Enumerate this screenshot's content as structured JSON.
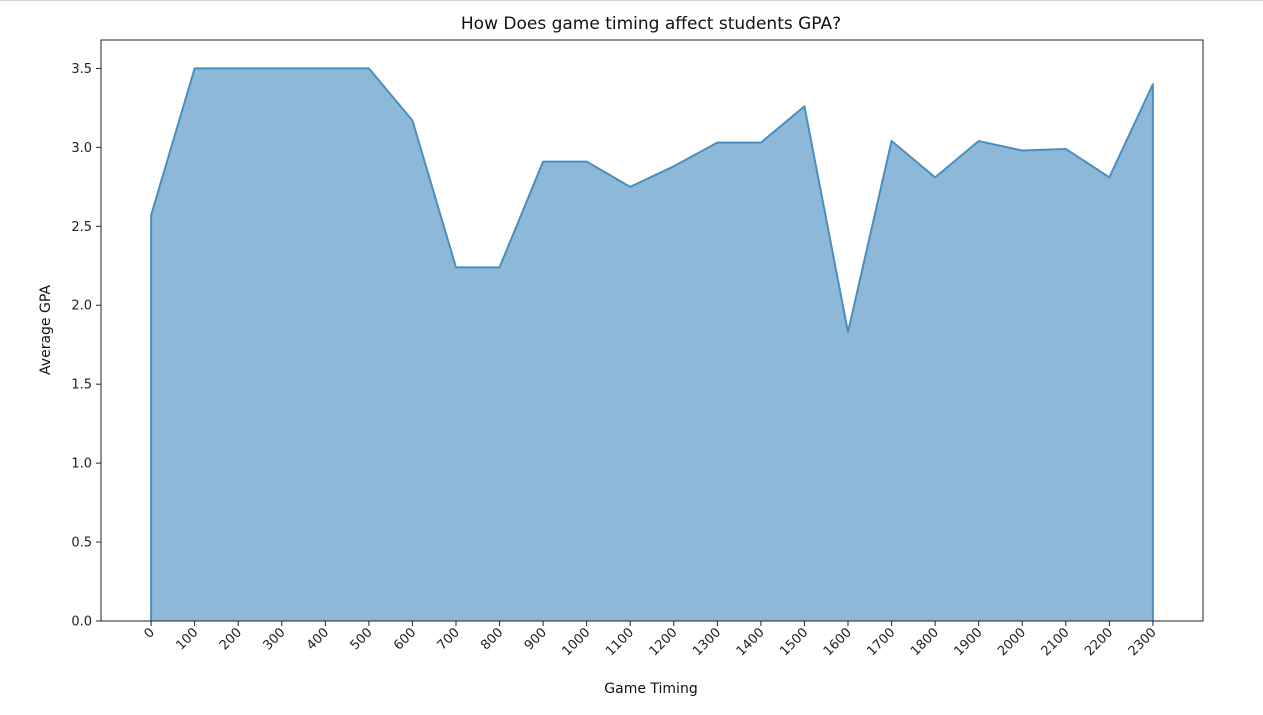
{
  "chart_data": {
    "type": "area",
    "title": "How Does game timing affect students GPA?",
    "xlabel": "Game Timing",
    "ylabel": "Average GPA",
    "x": [
      0,
      100,
      200,
      300,
      400,
      500,
      600,
      700,
      800,
      900,
      1000,
      1100,
      1200,
      1300,
      1400,
      1500,
      1600,
      1700,
      1800,
      1900,
      2000,
      2100,
      2200,
      2300
    ],
    "x_tick_labels": [
      "0",
      "100",
      "200",
      "300",
      "400",
      "500",
      "600",
      "700",
      "800",
      "900",
      "1000",
      "1100",
      "1200",
      "1300",
      "1400",
      "1500",
      "1600",
      "1700",
      "1800",
      "1900",
      "2000",
      "2100",
      "2200",
      "2300"
    ],
    "y": [
      2.57,
      3.5,
      3.5,
      3.5,
      3.5,
      3.5,
      3.17,
      2.24,
      2.24,
      2.91,
      2.91,
      2.75,
      2.88,
      3.03,
      3.03,
      3.26,
      1.83,
      3.04,
      2.81,
      3.04,
      2.98,
      2.99,
      2.81,
      3.4
    ],
    "y_ticks": [
      0.0,
      0.5,
      1.0,
      1.5,
      2.0,
      2.5,
      3.0,
      3.5
    ],
    "y_tick_labels": [
      "0.0",
      "0.5",
      "1.0",
      "1.5",
      "2.0",
      "2.5",
      "3.0",
      "3.5"
    ],
    "xlim": [
      -115,
      2415
    ],
    "ylim": [
      0,
      3.68
    ],
    "x_tick_rotation_deg": -45,
    "grid": false,
    "legend": "none",
    "colors": {
      "fill": "#8db8d8",
      "line": "#4a8ec0",
      "axes": "#222222"
    }
  }
}
